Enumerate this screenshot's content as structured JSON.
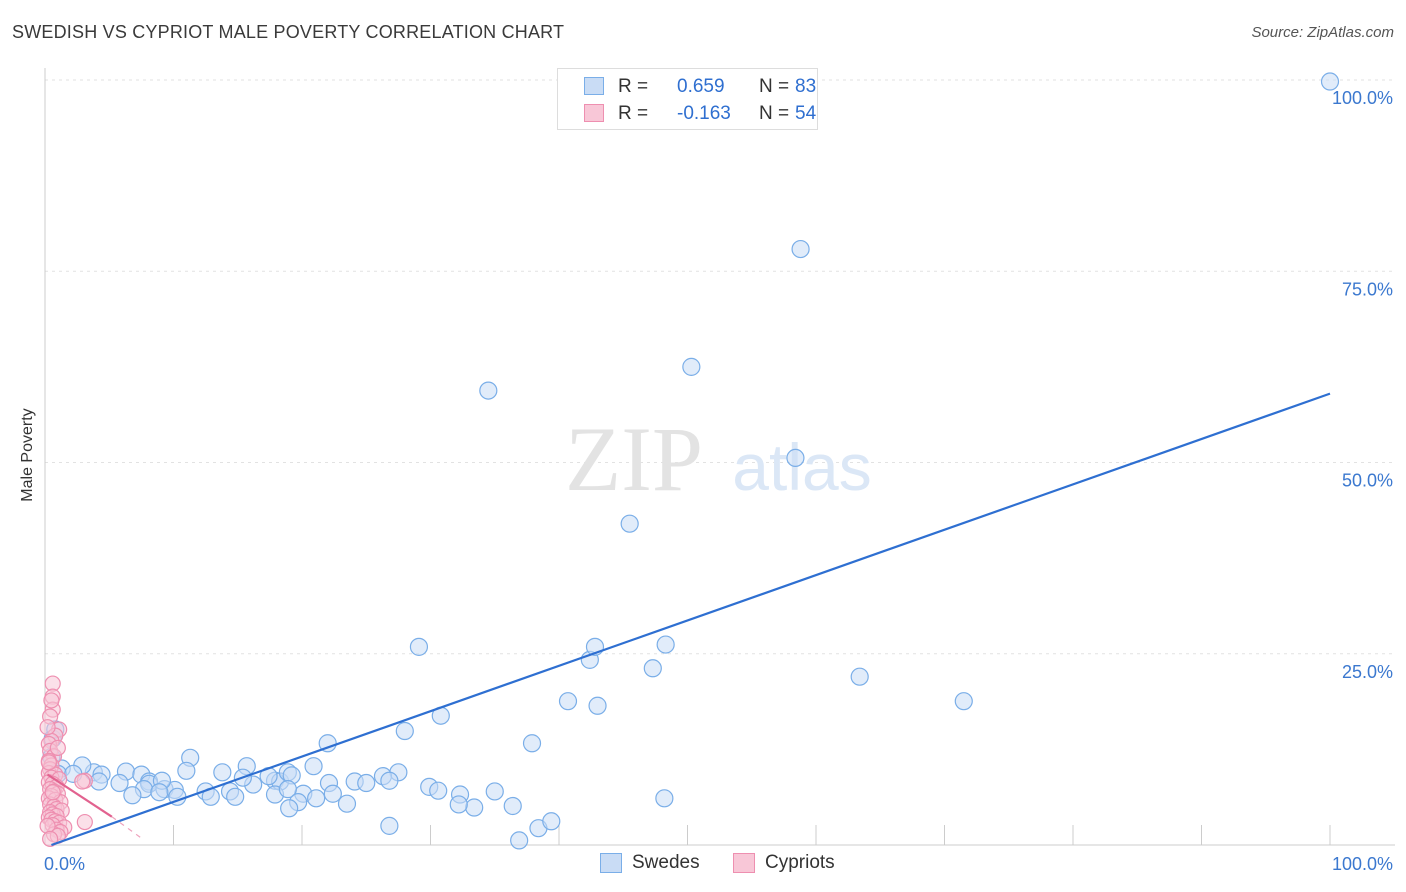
{
  "chart_data": {
    "type": "scatter",
    "title": "SWEDISH VS CYPRIOT MALE POVERTY CORRELATION CHART",
    "source": "Source: ZipAtlas.com",
    "xlabel": "",
    "ylabel": "Male Poverty",
    "xlim": [
      0,
      100
    ],
    "ylim": [
      0,
      100
    ],
    "x_tick_labels": [
      {
        "value": 0,
        "label": "0.0%"
      },
      {
        "value": 100,
        "label": "100.0%"
      }
    ],
    "y_tick_labels": [
      {
        "value": 25,
        "label": "25.0%"
      },
      {
        "value": 50,
        "label": "50.0%"
      },
      {
        "value": 75,
        "label": "75.0%"
      },
      {
        "value": 100,
        "label": "100.0%"
      }
    ],
    "watermark": {
      "part1": "ZIP",
      "part2": "atlas"
    },
    "legend": {
      "r_label": "R =",
      "n_label": "N =",
      "entries": [
        {
          "name": "Swedes",
          "r": "0.659",
          "n": "83"
        },
        {
          "name": "Cypriots",
          "r": "-0.163",
          "n": "54"
        }
      ]
    },
    "series": [
      {
        "name": "Swedes",
        "color": "#7aaee8",
        "fill": "#c9dcf5",
        "line_color": "#2e6fd1",
        "trend": {
          "x0": 0.5,
          "y0": 0,
          "x1": 100,
          "y1": 59,
          "dashed": false
        },
        "points": [
          [
            100,
            99.8
          ],
          [
            58.8,
            77.9
          ],
          [
            50.3,
            62.5
          ],
          [
            34.5,
            59.4
          ],
          [
            58.4,
            50.6
          ],
          [
            45.5,
            42.0
          ],
          [
            29.1,
            25.9
          ],
          [
            42.4,
            24.2
          ],
          [
            42.8,
            25.9
          ],
          [
            48.3,
            26.2
          ],
          [
            47.3,
            23.1
          ],
          [
            63.4,
            22.0
          ],
          [
            71.5,
            18.8
          ],
          [
            40.7,
            18.8
          ],
          [
            43.0,
            18.2
          ],
          [
            30.8,
            16.9
          ],
          [
            28.0,
            14.9
          ],
          [
            37.9,
            13.3
          ],
          [
            22.0,
            13.3
          ],
          [
            11.3,
            11.4
          ],
          [
            15.7,
            10.3
          ],
          [
            20.9,
            10.3
          ],
          [
            11.0,
            9.7
          ],
          [
            13.8,
            9.5
          ],
          [
            3.8,
            9.5
          ],
          [
            2.9,
            10.4
          ],
          [
            1.3,
            10.0
          ],
          [
            1.0,
            9.3
          ],
          [
            2.2,
            9.3
          ],
          [
            4.4,
            9.2
          ],
          [
            6.3,
            9.6
          ],
          [
            7.5,
            9.2
          ],
          [
            8.1,
            8.3
          ],
          [
            4.2,
            8.3
          ],
          [
            5.8,
            8.1
          ],
          [
            8.1,
            8.0
          ],
          [
            9.3,
            7.3
          ],
          [
            10.1,
            7.2
          ],
          [
            7.7,
            7.3
          ],
          [
            9.1,
            8.4
          ],
          [
            12.5,
            7.0
          ],
          [
            14.4,
            7.0
          ],
          [
            12.9,
            6.3
          ],
          [
            14.8,
            6.3
          ],
          [
            16.2,
            7.9
          ],
          [
            17.9,
            8.4
          ],
          [
            15.4,
            8.8
          ],
          [
            18.3,
            8.3
          ],
          [
            18.9,
            9.5
          ],
          [
            19.2,
            9.1
          ],
          [
            17.4,
            9.0
          ],
          [
            22.1,
            8.1
          ],
          [
            24.1,
            8.3
          ],
          [
            25.0,
            8.1
          ],
          [
            27.5,
            9.5
          ],
          [
            26.3,
            9.0
          ],
          [
            26.8,
            8.4
          ],
          [
            29.9,
            7.6
          ],
          [
            30.6,
            7.1
          ],
          [
            32.3,
            6.6
          ],
          [
            35.0,
            7.0
          ],
          [
            23.5,
            5.4
          ],
          [
            20.1,
            6.7
          ],
          [
            22.4,
            6.7
          ],
          [
            17.9,
            6.6
          ],
          [
            18.9,
            7.3
          ],
          [
            19.7,
            5.6
          ],
          [
            21.1,
            6.1
          ],
          [
            33.4,
            4.9
          ],
          [
            32.2,
            5.3
          ],
          [
            36.4,
            5.1
          ],
          [
            26.8,
            2.5
          ],
          [
            38.4,
            2.2
          ],
          [
            39.4,
            3.1
          ],
          [
            36.9,
            0.6
          ],
          [
            48.2,
            6.1
          ],
          [
            19.0,
            4.8
          ],
          [
            10.3,
            6.3
          ],
          [
            6.8,
            6.5
          ],
          [
            8.9,
            6.9
          ],
          [
            0.5,
            11.5
          ],
          [
            0.6,
            13.9
          ],
          [
            0.8,
            15.1
          ]
        ]
      },
      {
        "name": "Cypriots",
        "color": "#ee8fb0",
        "fill": "#f8c7d7",
        "line_color": "#e2628f",
        "trend": {
          "x0": 0.2,
          "y0": 9.2,
          "x1": 5.2,
          "y1": 3.7,
          "dashed": false
        },
        "trend_ext": {
          "x0": 5.2,
          "y0": 3.7,
          "x1": 7.5,
          "y1": 0.9,
          "dashed": true
        },
        "points": [
          [
            0.6,
            21.1
          ],
          [
            0.6,
            19.4
          ],
          [
            0.6,
            17.7
          ],
          [
            0.4,
            16.8
          ],
          [
            1.1,
            15.1
          ],
          [
            0.8,
            14.3
          ],
          [
            0.5,
            13.6
          ],
          [
            0.3,
            13.2
          ],
          [
            0.4,
            12.3
          ],
          [
            0.7,
            11.6
          ],
          [
            0.3,
            11.0
          ],
          [
            0.5,
            10.4
          ],
          [
            0.4,
            9.9
          ],
          [
            0.3,
            9.4
          ],
          [
            0.8,
            9.2
          ],
          [
            0.5,
            8.8
          ],
          [
            1.1,
            8.6
          ],
          [
            3.1,
            8.4
          ],
          [
            0.3,
            8.2
          ],
          [
            0.6,
            8.0
          ],
          [
            0.9,
            7.6
          ],
          [
            0.4,
            7.3
          ],
          [
            0.7,
            7.0
          ],
          [
            1.0,
            6.7
          ],
          [
            0.5,
            6.4
          ],
          [
            0.3,
            6.1
          ],
          [
            0.8,
            5.9
          ],
          [
            1.2,
            5.6
          ],
          [
            0.4,
            5.3
          ],
          [
            0.7,
            5.0
          ],
          [
            0.9,
            4.7
          ],
          [
            1.3,
            4.5
          ],
          [
            0.4,
            4.3
          ],
          [
            0.6,
            4.0
          ],
          [
            0.9,
            3.8
          ],
          [
            0.3,
            3.6
          ],
          [
            0.5,
            3.3
          ],
          [
            0.8,
            3.1
          ],
          [
            1.1,
            2.9
          ],
          [
            0.6,
            2.6
          ],
          [
            1.5,
            2.3
          ],
          [
            0.9,
            2.0
          ],
          [
            1.2,
            1.7
          ],
          [
            0.7,
            1.4
          ],
          [
            3.1,
            3.0
          ],
          [
            2.9,
            8.3
          ],
          [
            0.2,
            15.4
          ],
          [
            0.5,
            18.9
          ],
          [
            1.0,
            12.7
          ],
          [
            0.3,
            10.8
          ],
          [
            0.6,
            6.9
          ],
          [
            0.2,
            2.5
          ],
          [
            1.0,
            1.2
          ],
          [
            0.4,
            0.8
          ]
        ]
      }
    ]
  }
}
